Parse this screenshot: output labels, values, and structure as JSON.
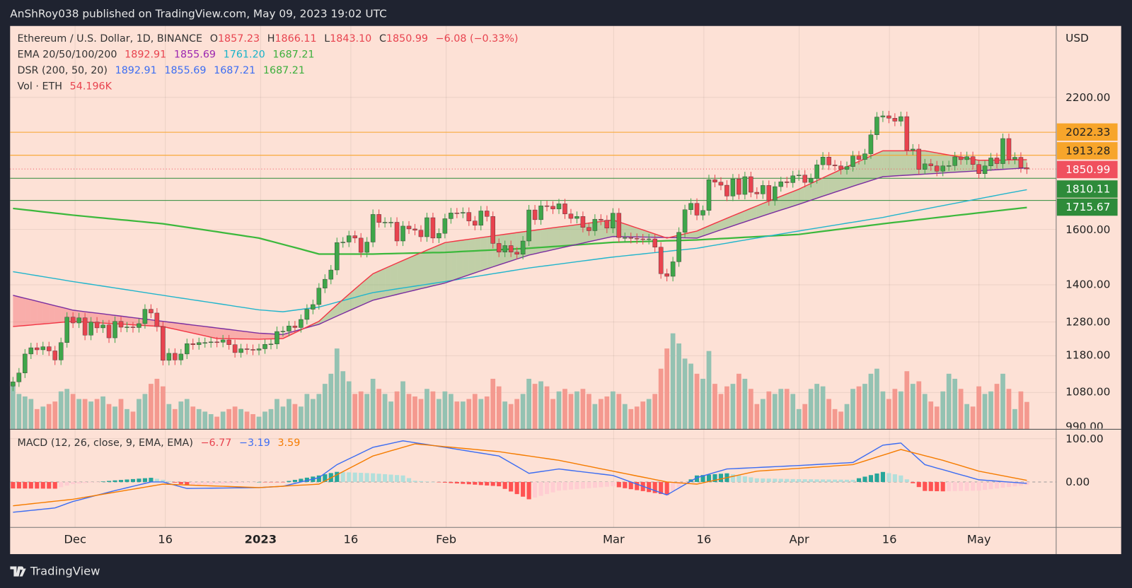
{
  "header": {
    "published": "AnShRoy038 published on TradingView.com, May 09, 2023 19:02 UTC"
  },
  "legend": {
    "symbol": "Ethereum / U.S. Dollar, 1D, BINANCE",
    "o_label": "O",
    "o": "1857.23",
    "h_label": "H",
    "h": "1866.11",
    "l_label": "L",
    "l": "1843.10",
    "c_label": "C",
    "c": "1850.99",
    "change": "−6.08 (−0.33%)",
    "ema": {
      "label": "EMA 20/50/100/200",
      "values": [
        "1892.91",
        "1855.69",
        "1761.20",
        "1687.21"
      ]
    },
    "dsr": {
      "label": "DSR (200, 50, 20)",
      "values": [
        "1892.91",
        "1855.69",
        "1687.21",
        "1687.21"
      ]
    },
    "vol": {
      "label": "Vol · ETH",
      "value": "54.196K"
    }
  },
  "macd_legend": {
    "label": "MACD (12, 26, close, 9, EMA, EMA)",
    "values": [
      "−6.77",
      "−3.19",
      "3.59"
    ]
  },
  "price_axis": {
    "currency": "USD",
    "ticks": [
      "2200.00",
      "1600.00",
      "1400.00",
      "1280.00",
      "1180.00",
      "1080.00",
      "990.00"
    ]
  },
  "price_labels": [
    {
      "value": "2022.33",
      "bg": "#f7a52b",
      "fg": "#222"
    },
    {
      "value": "1913.28",
      "bg": "#f7a52b",
      "fg": "#222"
    },
    {
      "value": "1850.99",
      "bg": "#f0505e",
      "fg": "#fff"
    },
    {
      "value": "1810.11",
      "bg": "#2e8b3a",
      "fg": "#fff"
    },
    {
      "value": "1715.67",
      "bg": "#2e8b3a",
      "fg": "#fff"
    }
  ],
  "macd_axis": {
    "ticks": [
      "100.00",
      "0.00"
    ]
  },
  "time_axis": {
    "labels": [
      "Dec",
      "16",
      "2023",
      "16",
      "Feb",
      "Mar",
      "16",
      "Apr",
      "16",
      "May"
    ]
  },
  "footer": {
    "brand": "TradingView"
  },
  "colors": {
    "up": "#3fa64a",
    "down": "#e8434f",
    "ema20": "#f23645",
    "ema50": "#7b2fa0",
    "ema100": "#22b5cc",
    "ema200": "#3cb83c",
    "macd": "#3d6df2",
    "signal": "#f57c00"
  },
  "chart_data": {
    "type": "candlestick",
    "title": "Ethereum / U.S. Dollar, 1D, BINANCE",
    "y_scale": "log",
    "ylim": [
      990,
      2400
    ],
    "grid": true,
    "candles_date_close_volumeK": [
      [
        "2022-11-21",
        1108,
        90
      ],
      [
        "2022-11-22",
        1132,
        70
      ],
      [
        "2022-11-23",
        1185,
        65
      ],
      [
        "2022-11-24",
        1203,
        60
      ],
      [
        "2022-11-25",
        1197,
        40
      ],
      [
        "2022-11-26",
        1206,
        45
      ],
      [
        "2022-11-27",
        1194,
        50
      ],
      [
        "2022-11-28",
        1168,
        55
      ],
      [
        "2022-11-29",
        1218,
        75
      ],
      [
        "2022-11-30",
        1295,
        80
      ],
      [
        "2022-12-01",
        1277,
        70
      ],
      [
        "2022-12-02",
        1293,
        60
      ],
      [
        "2022-12-03",
        1240,
        60
      ],
      [
        "2022-12-04",
        1280,
        55
      ],
      [
        "2022-12-05",
        1262,
        60
      ],
      [
        "2022-12-06",
        1271,
        65
      ],
      [
        "2022-12-07",
        1232,
        50
      ],
      [
        "2022-12-08",
        1282,
        45
      ],
      [
        "2022-12-09",
        1264,
        60
      ],
      [
        "2022-12-10",
        1265,
        40
      ],
      [
        "2022-12-11",
        1263,
        35
      ],
      [
        "2022-12-12",
        1275,
        60
      ],
      [
        "2022-12-13",
        1320,
        70
      ],
      [
        "2022-12-14",
        1308,
        90
      ],
      [
        "2022-12-15",
        1266,
        100
      ],
      [
        "2022-12-16",
        1167,
        85
      ],
      [
        "2022-12-17",
        1187,
        50
      ],
      [
        "2022-12-18",
        1168,
        40
      ],
      [
        "2022-12-19",
        1185,
        55
      ],
      [
        "2022-12-20",
        1215,
        60
      ],
      [
        "2022-12-21",
        1212,
        45
      ],
      [
        "2022-12-22",
        1218,
        40
      ],
      [
        "2022-12-23",
        1218,
        35
      ],
      [
        "2022-12-24",
        1220,
        30
      ],
      [
        "2022-12-25",
        1219,
        25
      ],
      [
        "2022-12-26",
        1226,
        35
      ],
      [
        "2022-12-27",
        1212,
        40
      ],
      [
        "2022-12-28",
        1189,
        45
      ],
      [
        "2022-12-29",
        1200,
        40
      ],
      [
        "2022-12-30",
        1198,
        35
      ],
      [
        "2022-12-31",
        1196,
        30
      ],
      [
        "2023-01-01",
        1200,
        25
      ],
      [
        "2023-01-02",
        1213,
        35
      ],
      [
        "2023-01-03",
        1214,
        40
      ],
      [
        "2023-01-04",
        1251,
        60
      ],
      [
        "2023-01-05",
        1252,
        45
      ],
      [
        "2023-01-06",
        1268,
        60
      ],
      [
        "2023-01-07",
        1263,
        50
      ],
      [
        "2023-01-08",
        1288,
        45
      ],
      [
        "2023-01-09",
        1320,
        70
      ],
      [
        "2023-01-10",
        1335,
        60
      ],
      [
        "2023-01-11",
        1389,
        70
      ],
      [
        "2023-01-12",
        1419,
        90
      ],
      [
        "2023-01-13",
        1451,
        110
      ],
      [
        "2023-01-14",
        1550,
        160
      ],
      [
        "2023-01-15",
        1552,
        115
      ],
      [
        "2023-01-16",
        1576,
        95
      ],
      [
        "2023-01-17",
        1567,
        70
      ],
      [
        "2023-01-18",
        1514,
        75
      ],
      [
        "2023-01-19",
        1552,
        70
      ],
      [
        "2023-01-20",
        1659,
        100
      ],
      [
        "2023-01-21",
        1627,
        80
      ],
      [
        "2023-01-22",
        1628,
        70
      ],
      [
        "2023-01-23",
        1628,
        55
      ],
      [
        "2023-01-24",
        1556,
        75
      ],
      [
        "2023-01-25",
        1613,
        95
      ],
      [
        "2023-01-26",
        1602,
        70
      ],
      [
        "2023-01-27",
        1597,
        65
      ],
      [
        "2023-01-28",
        1572,
        60
      ],
      [
        "2023-01-29",
        1646,
        80
      ],
      [
        "2023-01-30",
        1567,
        75
      ],
      [
        "2023-01-31",
        1585,
        60
      ],
      [
        "2023-02-01",
        1642,
        75
      ],
      [
        "2023-02-02",
        1665,
        70
      ],
      [
        "2023-02-03",
        1664,
        55
      ],
      [
        "2023-02-04",
        1667,
        55
      ],
      [
        "2023-02-05",
        1633,
        60
      ],
      [
        "2023-02-06",
        1616,
        70
      ],
      [
        "2023-02-07",
        1673,
        60
      ],
      [
        "2023-02-08",
        1651,
        65
      ],
      [
        "2023-02-09",
        1547,
        100
      ],
      [
        "2023-02-10",
        1515,
        85
      ],
      [
        "2023-02-11",
        1539,
        55
      ],
      [
        "2023-02-12",
        1515,
        50
      ],
      [
        "2023-02-13",
        1507,
        60
      ],
      [
        "2023-02-14",
        1556,
        70
      ],
      [
        "2023-02-15",
        1677,
        100
      ],
      [
        "2023-02-16",
        1638,
        90
      ],
      [
        "2023-02-17",
        1694,
        95
      ],
      [
        "2023-02-18",
        1692,
        85
      ],
      [
        "2023-02-19",
        1681,
        60
      ],
      [
        "2023-02-20",
        1702,
        75
      ],
      [
        "2023-02-21",
        1661,
        80
      ],
      [
        "2023-02-22",
        1643,
        70
      ],
      [
        "2023-02-23",
        1651,
        75
      ],
      [
        "2023-02-24",
        1608,
        80
      ],
      [
        "2023-02-25",
        1595,
        70
      ],
      [
        "2023-02-26",
        1640,
        50
      ],
      [
        "2023-02-27",
        1636,
        60
      ],
      [
        "2023-02-28",
        1605,
        65
      ],
      [
        "2023-03-01",
        1664,
        75
      ],
      [
        "2023-03-02",
        1569,
        70
      ],
      [
        "2023-03-03",
        1569,
        50
      ],
      [
        "2023-03-04",
        1566,
        40
      ],
      [
        "2023-03-05",
        1564,
        45
      ],
      [
        "2023-03-06",
        1562,
        55
      ],
      [
        "2023-03-07",
        1564,
        60
      ],
      [
        "2023-03-08",
        1533,
        70
      ],
      [
        "2023-03-09",
        1438,
        120
      ],
      [
        "2023-03-10",
        1429,
        160
      ],
      [
        "2023-03-11",
        1480,
        190
      ],
      [
        "2023-03-12",
        1589,
        170
      ],
      [
        "2023-03-13",
        1678,
        140
      ],
      [
        "2023-03-14",
        1704,
        130
      ],
      [
        "2023-03-15",
        1656,
        110
      ],
      [
        "2023-03-16",
        1675,
        100
      ],
      [
        "2023-03-17",
        1804,
        155
      ],
      [
        "2023-03-18",
        1793,
        90
      ],
      [
        "2023-03-19",
        1780,
        70
      ],
      [
        "2023-03-20",
        1734,
        85
      ],
      [
        "2023-03-21",
        1807,
        90
      ],
      [
        "2023-03-22",
        1741,
        110
      ],
      [
        "2023-03-23",
        1817,
        100
      ],
      [
        "2023-03-24",
        1750,
        80
      ],
      [
        "2023-03-25",
        1743,
        50
      ],
      [
        "2023-03-26",
        1779,
        60
      ],
      [
        "2023-03-27",
        1715,
        75
      ],
      [
        "2023-03-28",
        1774,
        70
      ],
      [
        "2023-03-29",
        1795,
        80
      ],
      [
        "2023-03-30",
        1791,
        80
      ],
      [
        "2023-03-31",
        1821,
        70
      ],
      [
        "2023-04-01",
        1824,
        40
      ],
      [
        "2023-04-02",
        1792,
        50
      ],
      [
        "2023-04-03",
        1809,
        80
      ],
      [
        "2023-04-04",
        1870,
        90
      ],
      [
        "2023-04-05",
        1905,
        85
      ],
      [
        "2023-04-06",
        1869,
        60
      ],
      [
        "2023-04-07",
        1865,
        40
      ],
      [
        "2023-04-08",
        1849,
        35
      ],
      [
        "2023-04-09",
        1862,
        50
      ],
      [
        "2023-04-10",
        1910,
        80
      ],
      [
        "2023-04-11",
        1894,
        85
      ],
      [
        "2023-04-12",
        1920,
        90
      ],
      [
        "2023-04-13",
        2010,
        110
      ],
      [
        "2023-04-14",
        2098,
        120
      ],
      [
        "2023-04-15",
        2104,
        75
      ],
      [
        "2023-04-16",
        2092,
        60
      ],
      [
        "2023-04-17",
        2077,
        80
      ],
      [
        "2023-04-18",
        2100,
        75
      ],
      [
        "2023-04-19",
        1937,
        115
      ],
      [
        "2023-04-20",
        1942,
        90
      ],
      [
        "2023-04-21",
        1849,
        95
      ],
      [
        "2023-04-22",
        1874,
        70
      ],
      [
        "2023-04-23",
        1865,
        55
      ],
      [
        "2023-04-24",
        1841,
        45
      ],
      [
        "2023-04-25",
        1865,
        75
      ],
      [
        "2023-04-26",
        1866,
        110
      ],
      [
        "2023-04-27",
        1906,
        100
      ],
      [
        "2023-04-28",
        1893,
        80
      ],
      [
        "2023-04-29",
        1907,
        50
      ],
      [
        "2023-04-30",
        1871,
        45
      ],
      [
        "2023-05-01",
        1830,
        85
      ],
      [
        "2023-05-02",
        1865,
        70
      ],
      [
        "2023-05-03",
        1901,
        75
      ],
      [
        "2023-05-04",
        1875,
        90
      ],
      [
        "2023-05-05",
        1992,
        110
      ],
      [
        "2023-05-06",
        1895,
        80
      ],
      [
        "2023-05-07",
        1904,
        40
      ],
      [
        "2023-05-08",
        1857,
        75
      ],
      [
        "2023-05-09",
        1851,
        54.196
      ]
    ],
    "ema20": [
      [
        "2022-11-21",
        1266
      ],
      [
        "2022-12-01",
        1282
      ],
      [
        "2022-12-16",
        1266
      ],
      [
        "2022-12-25",
        1230
      ],
      [
        "2023-01-01",
        1228
      ],
      [
        "2023-01-05",
        1230
      ],
      [
        "2023-01-11",
        1282
      ],
      [
        "2023-01-20",
        1438
      ],
      [
        "2023-02-01",
        1550
      ],
      [
        "2023-02-15",
        1594
      ],
      [
        "2023-03-01",
        1637
      ],
      [
        "2023-03-10",
        1567
      ],
      [
        "2023-03-15",
        1594
      ],
      [
        "2023-04-01",
        1763
      ],
      [
        "2023-04-15",
        1934
      ],
      [
        "2023-04-22",
        1934
      ],
      [
        "2023-05-01",
        1890
      ],
      [
        "2023-05-09",
        1893
      ]
    ],
    "ema50": [
      [
        "2022-11-21",
        1365
      ],
      [
        "2022-12-01",
        1317
      ],
      [
        "2022-12-16",
        1282
      ],
      [
        "2023-01-01",
        1246
      ],
      [
        "2023-01-05",
        1242
      ],
      [
        "2023-01-11",
        1273
      ],
      [
        "2023-01-20",
        1349
      ],
      [
        "2023-02-01",
        1406
      ],
      [
        "2023-02-15",
        1504
      ],
      [
        "2023-03-01",
        1573
      ],
      [
        "2023-03-15",
        1567
      ],
      [
        "2023-04-01",
        1700
      ],
      [
        "2023-04-15",
        1817
      ],
      [
        "2023-05-09",
        1856
      ]
    ],
    "ema100": [
      [
        "2022-11-21",
        1445
      ],
      [
        "2022-12-01",
        1411
      ],
      [
        "2022-12-16",
        1365
      ],
      [
        "2023-01-01",
        1318
      ],
      [
        "2023-01-05",
        1312
      ],
      [
        "2023-01-11",
        1327
      ],
      [
        "2023-01-20",
        1374
      ],
      [
        "2023-02-01",
        1411
      ],
      [
        "2023-02-15",
        1458
      ],
      [
        "2023-03-01",
        1497
      ],
      [
        "2023-03-15",
        1529
      ],
      [
        "2023-04-01",
        1594
      ],
      [
        "2023-04-15",
        1647
      ],
      [
        "2023-05-09",
        1761
      ]
    ],
    "ema200": [
      [
        "2022-11-21",
        1683
      ],
      [
        "2022-12-01",
        1656
      ],
      [
        "2022-12-16",
        1622
      ],
      [
        "2023-01-01",
        1567
      ],
      [
        "2023-01-11",
        1508
      ],
      [
        "2023-01-20",
        1508
      ],
      [
        "2023-02-01",
        1514
      ],
      [
        "2023-02-15",
        1529
      ],
      [
        "2023-03-01",
        1551
      ],
      [
        "2023-03-15",
        1560
      ],
      [
        "2023-04-01",
        1581
      ],
      [
        "2023-04-15",
        1622
      ],
      [
        "2023-05-09",
        1687
      ]
    ],
    "horizontal_levels": [
      2022.33,
      1913.28,
      1810.11,
      1715.67
    ],
    "macd": [
      [
        "2022-11-21",
        -70
      ],
      [
        "2022-11-28",
        -60
      ],
      [
        "2022-12-01",
        -45
      ],
      [
        "2022-12-08",
        -20
      ],
      [
        "2022-12-14",
        0
      ],
      [
        "2022-12-16",
        0
      ],
      [
        "2022-12-20",
        -15
      ],
      [
        "2023-01-01",
        -13
      ],
      [
        "2023-01-05",
        -10
      ],
      [
        "2023-01-11",
        10
      ],
      [
        "2023-01-14",
        40
      ],
      [
        "2023-01-20",
        80
      ],
      [
        "2023-01-25",
        95
      ],
      [
        "2023-02-01",
        80
      ],
      [
        "2023-02-10",
        60
      ],
      [
        "2023-02-15",
        20
      ],
      [
        "2023-02-20",
        30
      ],
      [
        "2023-03-01",
        15
      ],
      [
        "2023-03-10",
        -30
      ],
      [
        "2023-03-15",
        10
      ],
      [
        "2023-03-20",
        30
      ],
      [
        "2023-04-01",
        38
      ],
      [
        "2023-04-10",
        45
      ],
      [
        "2023-04-15",
        85
      ],
      [
        "2023-04-18",
        90
      ],
      [
        "2023-04-22",
        40
      ],
      [
        "2023-05-01",
        5
      ],
      [
        "2023-05-09",
        -3.19
      ]
    ],
    "signal": [
      [
        "2022-11-21",
        -55
      ],
      [
        "2022-12-01",
        -40
      ],
      [
        "2022-12-16",
        -5
      ],
      [
        "2023-01-01",
        -13
      ],
      [
        "2023-01-11",
        -5
      ],
      [
        "2023-01-20",
        60
      ],
      [
        "2023-01-27",
        88
      ],
      [
        "2023-02-10",
        70
      ],
      [
        "2023-02-20",
        50
      ],
      [
        "2023-03-01",
        25
      ],
      [
        "2023-03-10",
        0
      ],
      [
        "2023-03-15",
        -5
      ],
      [
        "2023-03-25",
        25
      ],
      [
        "2023-04-10",
        40
      ],
      [
        "2023-04-18",
        75
      ],
      [
        "2023-04-25",
        50
      ],
      [
        "2023-05-01",
        25
      ],
      [
        "2023-05-09",
        3.59
      ]
    ],
    "macd_ylim": [
      -90,
      110
    ]
  }
}
